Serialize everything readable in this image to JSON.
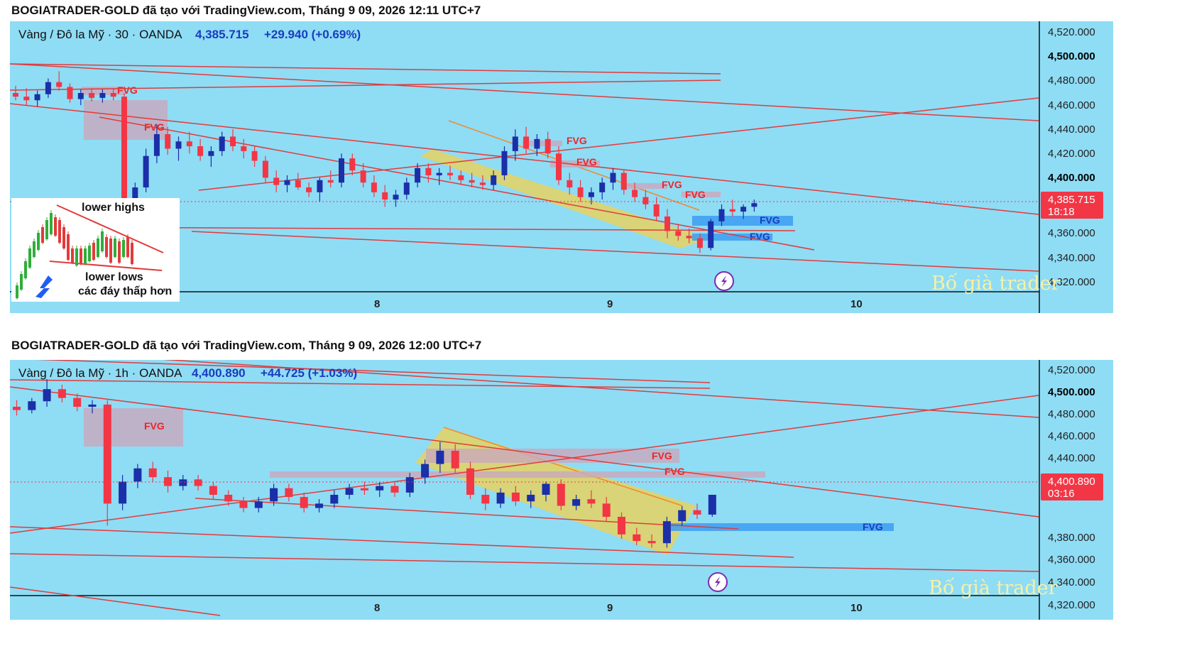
{
  "colors": {
    "bg": "#8fdcf5",
    "up": "#1a2fa8",
    "down": "#f23645",
    "trend": "#e13b3b",
    "fvg_red_zone": "#c9a7bd",
    "fvg_blue_zone": "#3d9cf2",
    "channel": "#f0d24c",
    "tag": "#f23645"
  },
  "panels": [
    {
      "header": "BOGIATRADER-GOLD đã tạo với TradingView.com, Tháng 9 09, 2026 12:11 UTC+7",
      "symbol": "Vàng / Đô la Mỹ · 30 · OANDA",
      "price": "4,385.715",
      "change": "+29.940 (+0.69%)",
      "tag_price": "4,385.715",
      "tag_time": "18:18",
      "y_ticks": [
        "4,520.000",
        "4,500.000",
        "4,480.000",
        "4,460.000",
        "4,440.000",
        "4,420.000",
        "4,400.000",
        "4,360.000",
        "4,340.000",
        "4,320.000"
      ],
      "x_ticks": [
        "8",
        "9",
        "10"
      ],
      "fvg_labels": [
        "FVG",
        "FVG",
        "FVG",
        "FVG",
        "FVG",
        "FVG",
        "FVG",
        "FVG"
      ],
      "watermark": "Bố già trader",
      "inset": {
        "label_top": "lower highs",
        "label_bottom": "lower lows",
        "label_bottom2": "các đáy thấp hơn"
      },
      "lightning_icon": "lightning-icon"
    },
    {
      "header": "BOGIATRADER-GOLD đã tạo với TradingView.com, Tháng 9 09, 2026 12:00 UTC+7",
      "symbol": "Vàng / Đô la Mỹ · 1h · OANDA",
      "price": "4,400.890",
      "change": "+44.725 (+1.03%)",
      "tag_price": "4,400.890",
      "tag_time": "03:16",
      "y_ticks": [
        "4,520.000",
        "4,500.000",
        "4,480.000",
        "4,460.000",
        "4,440.000",
        "4,420.000",
        "4,380.000",
        "4,360.000",
        "4,340.000",
        "4,320.000"
      ],
      "x_ticks": [
        "8",
        "9",
        "10"
      ],
      "fvg_labels": [
        "FVG",
        "FVG",
        "FVG",
        "FVG"
      ],
      "watermark": "Bố già trader",
      "lightning_icon": "lightning-icon"
    }
  ],
  "chart_data": [
    {
      "type": "candlestick",
      "title": "Vàng / Đô la Mỹ · 30 · OANDA",
      "ylim": [
        4305,
        4530
      ],
      "x_ticks": [
        "8",
        "9",
        "10"
      ],
      "ohlc": [
        [
          4476,
          4482,
          4470,
          4473
        ],
        [
          4473,
          4480,
          4466,
          4470
        ],
        [
          4470,
          4478,
          4465,
          4475
        ],
        [
          4475,
          4488,
          4472,
          4485
        ],
        [
          4485,
          4494,
          4478,
          4481
        ],
        [
          4481,
          4484,
          4468,
          4471
        ],
        [
          4471,
          4479,
          4466,
          4476
        ],
        [
          4476,
          4480,
          4469,
          4472
        ],
        [
          4472,
          4479,
          4468,
          4476
        ],
        [
          4476,
          4480,
          4470,
          4473
        ],
        [
          4473,
          4476,
          4370,
          4382
        ],
        [
          4382,
          4402,
          4378,
          4398
        ],
        [
          4398,
          4430,
          4394,
          4424
        ],
        [
          4424,
          4450,
          4418,
          4442
        ],
        [
          4442,
          4448,
          4425,
          4430
        ],
        [
          4430,
          4440,
          4420,
          4436
        ],
        [
          4436,
          4444,
          4426,
          4432
        ],
        [
          4432,
          4438,
          4420,
          4424
        ],
        [
          4424,
          4432,
          4415,
          4428
        ],
        [
          4428,
          4444,
          4424,
          4440
        ],
        [
          4440,
          4446,
          4428,
          4432
        ],
        [
          4432,
          4438,
          4422,
          4428
        ],
        [
          4428,
          4432,
          4415,
          4420
        ],
        [
          4420,
          4424,
          4402,
          4406
        ],
        [
          4406,
          4412,
          4394,
          4400
        ],
        [
          4400,
          4408,
          4394,
          4404
        ],
        [
          4404,
          4410,
          4396,
          4398
        ],
        [
          4398,
          4402,
          4390,
          4394
        ],
        [
          4394,
          4406,
          4386,
          4404
        ],
        [
          4404,
          4412,
          4398,
          4402
        ],
        [
          4402,
          4426,
          4398,
          4422
        ],
        [
          4422,
          4426,
          4408,
          4412
        ],
        [
          4412,
          4418,
          4398,
          4402
        ],
        [
          4402,
          4408,
          4390,
          4394
        ],
        [
          4394,
          4400,
          4382,
          4388
        ],
        [
          4388,
          4396,
          4382,
          4392
        ],
        [
          4392,
          4406,
          4388,
          4402
        ],
        [
          4402,
          4418,
          4398,
          4414
        ],
        [
          4414,
          4418,
          4402,
          4408
        ],
        [
          4408,
          4414,
          4400,
          4410
        ],
        [
          4410,
          4416,
          4404,
          4408
        ],
        [
          4408,
          4412,
          4400,
          4404
        ],
        [
          4404,
          4410,
          4398,
          4402
        ],
        [
          4402,
          4408,
          4396,
          4400
        ],
        [
          4400,
          4412,
          4396,
          4408
        ],
        [
          4408,
          4432,
          4404,
          4428
        ],
        [
          4428,
          4446,
          4420,
          4440
        ],
        [
          4440,
          4448,
          4426,
          4430
        ],
        [
          4430,
          4442,
          4424,
          4438
        ],
        [
          4438,
          4444,
          4422,
          4426
        ],
        [
          4426,
          4432,
          4400,
          4404
        ],
        [
          4404,
          4410,
          4392,
          4398
        ],
        [
          4398,
          4404,
          4386,
          4390
        ],
        [
          4390,
          4398,
          4384,
          4394
        ],
        [
          4394,
          4406,
          4388,
          4402
        ],
        [
          4402,
          4414,
          4396,
          4410
        ],
        [
          4410,
          4412,
          4392,
          4396
        ],
        [
          4396,
          4402,
          4386,
          4390
        ],
        [
          4390,
          4396,
          4380,
          4384
        ],
        [
          4384,
          4390,
          4370,
          4374
        ],
        [
          4374,
          4380,
          4356,
          4362
        ],
        [
          4362,
          4368,
          4354,
          4358
        ],
        [
          4358,
          4364,
          4352,
          4356
        ],
        [
          4356,
          4360,
          4344,
          4348
        ],
        [
          4348,
          4372,
          4346,
          4370
        ],
        [
          4370,
          4384,
          4366,
          4380
        ],
        [
          4380,
          4388,
          4374,
          4378
        ],
        [
          4378,
          4384,
          4372,
          4382
        ],
        [
          4382,
          4388,
          4378,
          4385
        ]
      ]
    },
    {
      "type": "candlestick",
      "title": "Vàng / Đô la Mỹ · 1h · OANDA",
      "ylim": [
        4305,
        4530
      ],
      "x_ticks": [
        "8",
        "9",
        "10"
      ],
      "ohlc": [
        [
          4480,
          4486,
          4472,
          4477
        ],
        [
          4477,
          4488,
          4474,
          4485
        ],
        [
          4485,
          4505,
          4480,
          4496
        ],
        [
          4496,
          4500,
          4484,
          4488
        ],
        [
          4488,
          4492,
          4476,
          4480
        ],
        [
          4480,
          4486,
          4474,
          4482
        ],
        [
          4482,
          4486,
          4372,
          4392
        ],
        [
          4392,
          4418,
          4386,
          4412
        ],
        [
          4412,
          4428,
          4406,
          4424
        ],
        [
          4424,
          4430,
          4412,
          4416
        ],
        [
          4416,
          4422,
          4402,
          4408
        ],
        [
          4408,
          4418,
          4404,
          4414
        ],
        [
          4414,
          4418,
          4404,
          4408
        ],
        [
          4408,
          4412,
          4396,
          4400
        ],
        [
          4400,
          4404,
          4390,
          4394
        ],
        [
          4394,
          4398,
          4384,
          4388
        ],
        [
          4388,
          4398,
          4384,
          4394
        ],
        [
          4394,
          4410,
          4390,
          4406
        ],
        [
          4406,
          4410,
          4394,
          4398
        ],
        [
          4398,
          4402,
          4384,
          4388
        ],
        [
          4388,
          4396,
          4384,
          4392
        ],
        [
          4392,
          4404,
          4388,
          4400
        ],
        [
          4400,
          4410,
          4396,
          4406
        ],
        [
          4406,
          4412,
          4400,
          4404
        ],
        [
          4404,
          4412,
          4398,
          4408
        ],
        [
          4408,
          4412,
          4398,
          4402
        ],
        [
          4402,
          4420,
          4398,
          4416
        ],
        [
          4416,
          4432,
          4410,
          4428
        ],
        [
          4428,
          4448,
          4420,
          4440
        ],
        [
          4440,
          4446,
          4420,
          4424
        ],
        [
          4424,
          4430,
          4396,
          4400
        ],
        [
          4400,
          4406,
          4386,
          4392
        ],
        [
          4392,
          4406,
          4388,
          4402
        ],
        [
          4402,
          4408,
          4390,
          4394
        ],
        [
          4394,
          4404,
          4388,
          4400
        ],
        [
          4400,
          4412,
          4394,
          4410
        ],
        [
          4410,
          4414,
          4386,
          4390
        ],
        [
          4390,
          4400,
          4386,
          4396
        ],
        [
          4396,
          4404,
          4388,
          4392
        ],
        [
          4392,
          4398,
          4376,
          4380
        ],
        [
          4380,
          4384,
          4360,
          4364
        ],
        [
          4364,
          4370,
          4354,
          4358
        ],
        [
          4358,
          4364,
          4352,
          4356
        ],
        [
          4356,
          4380,
          4352,
          4376
        ],
        [
          4376,
          4390,
          4372,
          4386
        ],
        [
          4386,
          4392,
          4378,
          4382
        ],
        [
          4382,
          4400,
          4380,
          4400
        ]
      ]
    }
  ]
}
